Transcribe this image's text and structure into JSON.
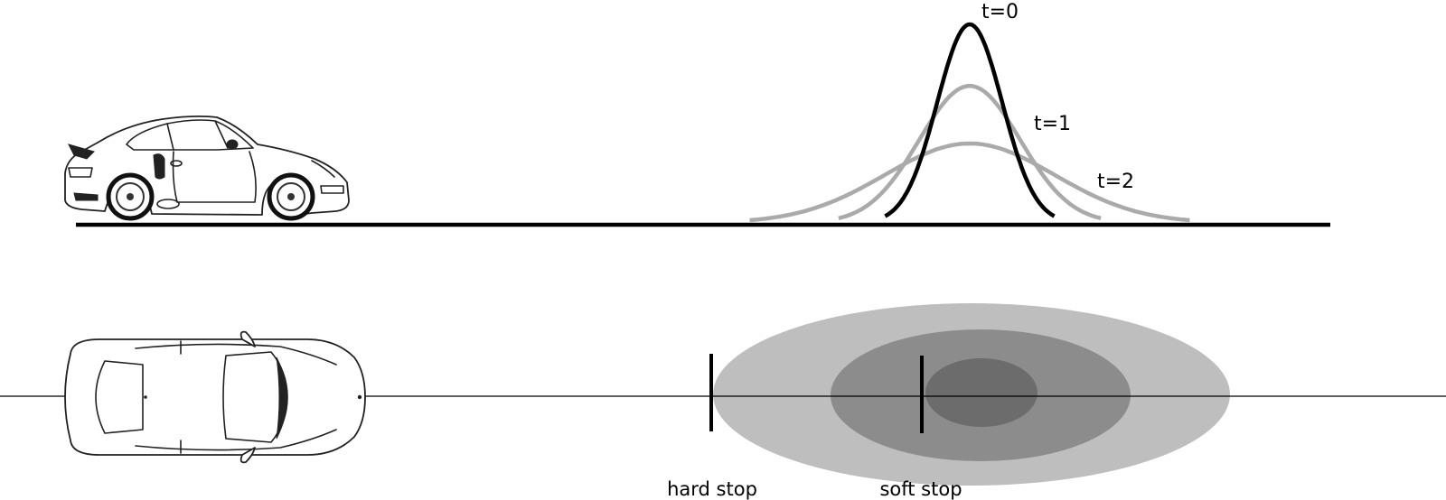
{
  "labels": {
    "t0": "t=0",
    "t1": "t=1",
    "t2": "t=2",
    "hard_stop": "hard stop",
    "soft_stop": "soft stop"
  },
  "curves": [
    {
      "name": "t0",
      "peak": 1.0,
      "spread": 1.0,
      "color": "#000000"
    },
    {
      "name": "t1",
      "peak": 0.69,
      "spread": 1.55,
      "color": "#aaaaaa"
    },
    {
      "name": "t2",
      "peak": 0.4,
      "spread": 2.6,
      "color": "#aaaaaa"
    }
  ],
  "ellipses": [
    {
      "name": "outer",
      "color": "#bebebe"
    },
    {
      "name": "middle",
      "color": "#8c8c8c"
    },
    {
      "name": "inner",
      "color": "#6c6c6c"
    }
  ]
}
